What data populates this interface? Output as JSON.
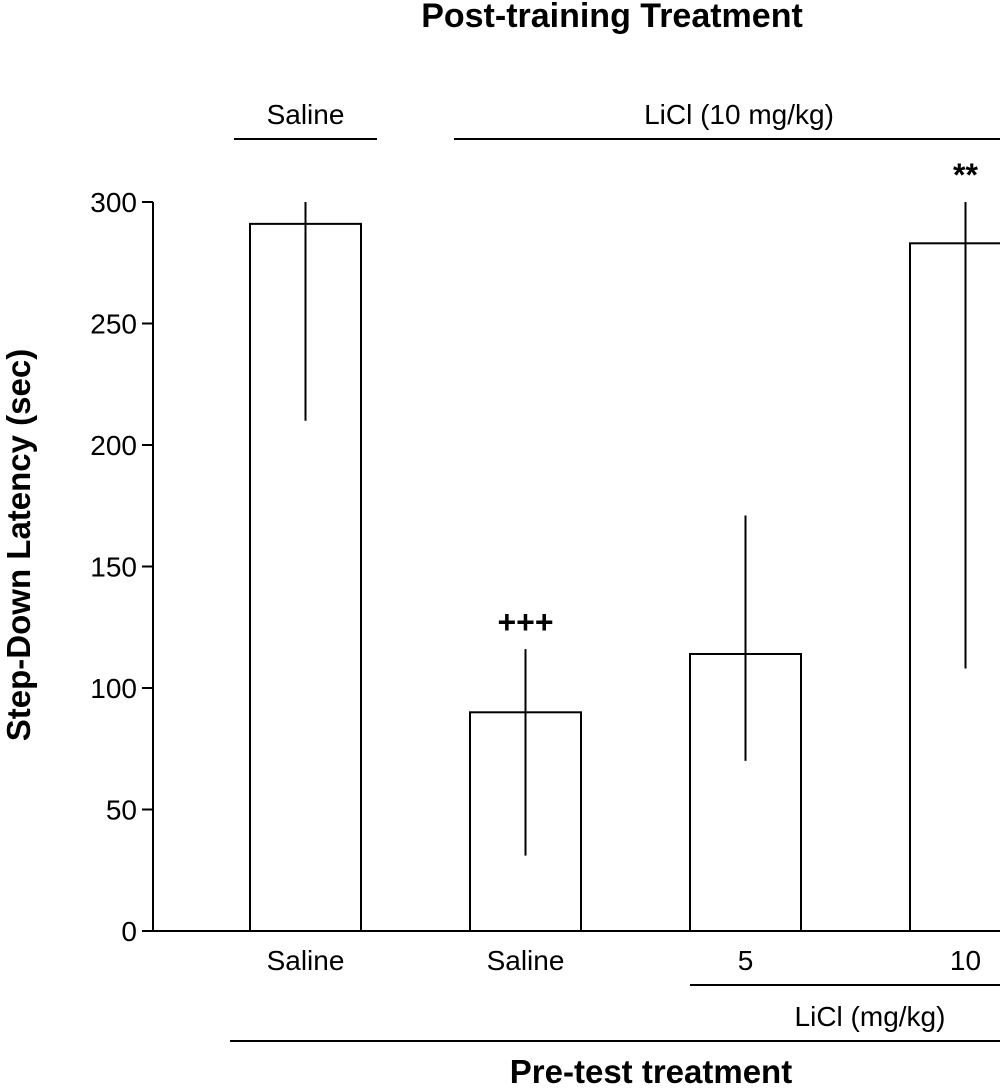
{
  "chart_data": {
    "type": "bar",
    "title": "Post-training Treatment",
    "ylabel": "Step-Down Latency (sec)",
    "xlabel": "Pre-test treatment",
    "ylim": [
      0,
      300
    ],
    "yticks": [
      0,
      50,
      100,
      150,
      200,
      250,
      300
    ],
    "categories": [
      "Saline",
      "Saline",
      "5",
      "10"
    ],
    "values": [
      291,
      90,
      114,
      283
    ],
    "error_low": [
      210,
      31,
      70,
      108
    ],
    "error_high": [
      300,
      116,
      171,
      300
    ],
    "annotations": [
      "",
      "+++",
      "",
      "**"
    ],
    "top_groups": [
      {
        "label": "Saline",
        "bars": [
          0,
          0
        ]
      },
      {
        "label": "LiCl (10 mg/kg)",
        "bars": [
          1,
          3
        ]
      }
    ],
    "bottom_group": {
      "label": "LiCl (mg/kg)",
      "bars": [
        2,
        3
      ]
    },
    "bar_fill": "#ffffff",
    "bar_stroke": "#000000",
    "grid": false
  }
}
